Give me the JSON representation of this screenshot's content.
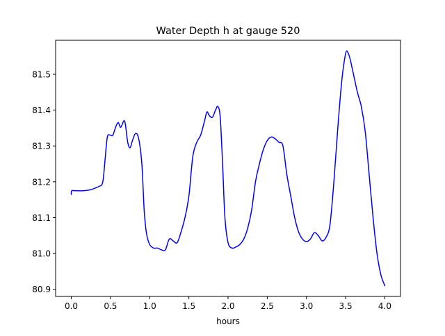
{
  "chart_data": {
    "type": "line",
    "title": "Water Depth h at gauge 520",
    "xlabel": "hours",
    "ylabel": "",
    "xlim": [
      -0.2,
      4.2
    ],
    "ylim": [
      80.88,
      81.595
    ],
    "xticks": [
      0.0,
      0.5,
      1.0,
      1.5,
      2.0,
      2.5,
      3.0,
      3.5,
      4.0
    ],
    "xtick_labels": [
      "0.0",
      "0.5",
      "1.0",
      "1.5",
      "2.0",
      "2.5",
      "3.0",
      "3.5",
      "4.0"
    ],
    "yticks": [
      80.9,
      81.0,
      81.1,
      81.2,
      81.3,
      81.4,
      81.5
    ],
    "ytick_labels": [
      "80.9",
      "81.0",
      "81.1",
      "81.2",
      "81.3",
      "81.4",
      "81.5"
    ],
    "grid": false,
    "legend": "none",
    "series": [
      {
        "color": "#0000ff",
        "x": [
          0.0,
          0.005,
          0.05,
          0.15,
          0.25,
          0.3,
          0.35,
          0.4,
          0.43,
          0.46,
          0.5,
          0.53,
          0.57,
          0.6,
          0.63,
          0.67,
          0.69,
          0.72,
          0.75,
          0.78,
          0.82,
          0.86,
          0.9,
          0.93,
          0.96,
          1.0,
          1.05,
          1.1,
          1.15,
          1.2,
          1.25,
          1.3,
          1.35,
          1.4,
          1.45,
          1.5,
          1.55,
          1.6,
          1.65,
          1.7,
          1.73,
          1.76,
          1.8,
          1.84,
          1.87,
          1.9,
          1.93,
          1.96,
          2.0,
          2.05,
          2.1,
          2.15,
          2.2,
          2.25,
          2.3,
          2.35,
          2.4,
          2.45,
          2.5,
          2.55,
          2.6,
          2.65,
          2.7,
          2.75,
          2.8,
          2.85,
          2.9,
          2.95,
          3.0,
          3.05,
          3.1,
          3.15,
          3.2,
          3.25,
          3.3,
          3.35,
          3.4,
          3.45,
          3.5,
          3.53,
          3.56,
          3.6,
          3.65,
          3.7,
          3.75,
          3.8,
          3.85,
          3.9,
          3.95,
          4.0
        ],
        "y": [
          81.165,
          81.175,
          81.175,
          81.175,
          81.178,
          81.182,
          81.187,
          81.198,
          81.26,
          81.325,
          81.33,
          81.33,
          81.355,
          81.365,
          81.352,
          81.37,
          81.36,
          81.31,
          81.295,
          81.315,
          81.335,
          81.32,
          81.25,
          81.12,
          81.055,
          81.025,
          81.015,
          81.015,
          81.01,
          81.01,
          81.04,
          81.035,
          81.03,
          81.06,
          81.1,
          81.16,
          81.27,
          81.31,
          81.33,
          81.37,
          81.395,
          81.385,
          81.38,
          81.4,
          81.41,
          81.38,
          81.25,
          81.1,
          81.03,
          81.015,
          81.018,
          81.025,
          81.04,
          81.07,
          81.12,
          81.2,
          81.25,
          81.29,
          81.315,
          81.325,
          81.32,
          81.31,
          81.3,
          81.22,
          81.16,
          81.1,
          81.06,
          81.04,
          81.033,
          81.04,
          81.058,
          81.05,
          81.035,
          81.045,
          81.08,
          81.2,
          81.35,
          81.48,
          81.558,
          81.56,
          81.54,
          81.5,
          81.45,
          81.41,
          81.34,
          81.22,
          81.1,
          81.0,
          80.94,
          80.91
        ]
      }
    ]
  }
}
